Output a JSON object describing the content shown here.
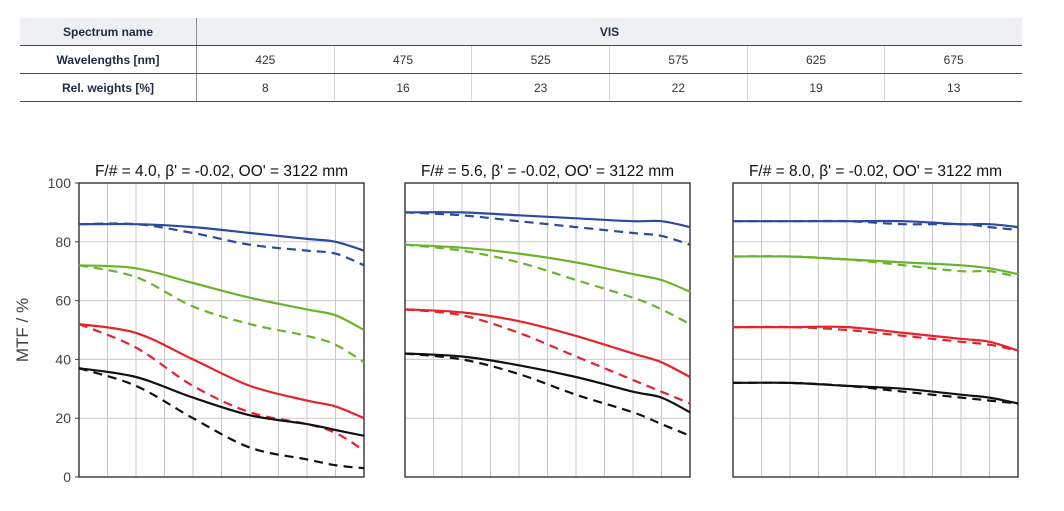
{
  "table": {
    "spectrum_label": "Spectrum name",
    "spectrum_value": "VIS",
    "wavelengths_label": "Wavelengths [nm]",
    "wavelengths": [
      "425",
      "475",
      "525",
      "575",
      "625",
      "675"
    ],
    "weights_label": "Rel. weights [%]",
    "weights": [
      "8",
      "16",
      "23",
      "22",
      "19",
      "13"
    ]
  },
  "chart_data": {
    "type": "line",
    "ylabel": "MTF / %",
    "ylim": [
      0,
      100
    ],
    "yticks": [
      "0",
      "20",
      "40",
      "60",
      "80",
      "100"
    ],
    "xlim": [
      0,
      1
    ],
    "grid": true,
    "colors": {
      "blue": "#2c4a9e",
      "green": "#6ab42d",
      "red": "#e3242b",
      "black": "#111111"
    },
    "panels": [
      {
        "title": "F/# = 4.0, β' = -0.02, OO' = 3122 mm",
        "series": [
          {
            "color": "blue",
            "style": "solid",
            "x": [
              0,
              0.2,
              0.4,
              0.6,
              0.8,
              0.9,
              1.0
            ],
            "y": [
              86,
              86,
              85,
              83,
              81,
              80,
              77
            ]
          },
          {
            "color": "blue",
            "style": "dashed",
            "x": [
              0,
              0.2,
              0.4,
              0.6,
              0.8,
              0.9,
              1.0
            ],
            "y": [
              86,
              86,
              83,
              79,
              77,
              76,
              72
            ]
          },
          {
            "color": "green",
            "style": "solid",
            "x": [
              0,
              0.2,
              0.4,
              0.6,
              0.8,
              0.9,
              1.0
            ],
            "y": [
              72,
              71,
              66,
              61,
              57,
              55,
              50
            ]
          },
          {
            "color": "green",
            "style": "dashed",
            "x": [
              0,
              0.2,
              0.4,
              0.6,
              0.8,
              0.9,
              1.0
            ],
            "y": [
              72,
              68,
              58,
              52,
              48,
              45,
              39
            ]
          },
          {
            "color": "red",
            "style": "solid",
            "x": [
              0,
              0.2,
              0.4,
              0.6,
              0.8,
              0.9,
              1.0
            ],
            "y": [
              52,
              49,
              40,
              31,
              26,
              24,
              20
            ]
          },
          {
            "color": "red",
            "style": "dashed",
            "x": [
              0,
              0.2,
              0.4,
              0.6,
              0.8,
              0.9,
              1.0
            ],
            "y": [
              52,
              44,
              31,
              22,
              18,
              15,
              9
            ]
          },
          {
            "color": "black",
            "style": "solid",
            "x": [
              0,
              0.2,
              0.4,
              0.6,
              0.8,
              0.9,
              1.0
            ],
            "y": [
              37,
              34,
              27,
              21,
              18,
              16,
              14
            ]
          },
          {
            "color": "black",
            "style": "dashed",
            "x": [
              0,
              0.2,
              0.4,
              0.6,
              0.8,
              0.9,
              1.0
            ],
            "y": [
              37,
              31,
              20,
              10,
              6,
              4,
              3
            ]
          }
        ]
      },
      {
        "title": "F/# = 5.6, β' = -0.02, OO' = 3122 mm",
        "series": [
          {
            "color": "blue",
            "style": "solid",
            "x": [
              0,
              0.2,
              0.4,
              0.6,
              0.8,
              0.9,
              1.0
            ],
            "y": [
              90,
              90,
              89,
              88,
              87,
              87,
              85
            ]
          },
          {
            "color": "blue",
            "style": "dashed",
            "x": [
              0,
              0.2,
              0.4,
              0.6,
              0.8,
              0.9,
              1.0
            ],
            "y": [
              90,
              89,
              87,
              85,
              83,
              82,
              79
            ]
          },
          {
            "color": "green",
            "style": "solid",
            "x": [
              0,
              0.2,
              0.4,
              0.6,
              0.8,
              0.9,
              1.0
            ],
            "y": [
              79,
              78,
              76,
              73,
              69,
              67,
              63
            ]
          },
          {
            "color": "green",
            "style": "dashed",
            "x": [
              0,
              0.2,
              0.4,
              0.6,
              0.8,
              0.9,
              1.0
            ],
            "y": [
              79,
              77,
              73,
              67,
              61,
              57,
              52
            ]
          },
          {
            "color": "red",
            "style": "solid",
            "x": [
              0,
              0.2,
              0.4,
              0.6,
              0.8,
              0.9,
              1.0
            ],
            "y": [
              57,
              56,
              53,
              48,
              42,
              39,
              34
            ]
          },
          {
            "color": "red",
            "style": "dashed",
            "x": [
              0,
              0.2,
              0.4,
              0.6,
              0.8,
              0.9,
              1.0
            ],
            "y": [
              57,
              55,
              49,
              41,
              33,
              29,
              25
            ]
          },
          {
            "color": "black",
            "style": "solid",
            "x": [
              0,
              0.2,
              0.4,
              0.6,
              0.8,
              0.9,
              1.0
            ],
            "y": [
              42,
              41,
              38,
              34,
              29,
              27,
              22
            ]
          },
          {
            "color": "black",
            "style": "dashed",
            "x": [
              0,
              0.2,
              0.4,
              0.6,
              0.8,
              0.9,
              1.0
            ],
            "y": [
              42,
              40,
              35,
              28,
              22,
              18,
              14
            ]
          }
        ]
      },
      {
        "title": "F/# = 8.0, β' = -0.02, OO' = 3122 mm",
        "series": [
          {
            "color": "blue",
            "style": "solid",
            "x": [
              0,
              0.2,
              0.4,
              0.6,
              0.8,
              0.9,
              1.0
            ],
            "y": [
              87,
              87,
              87,
              87,
              86,
              86,
              85
            ]
          },
          {
            "color": "blue",
            "style": "dashed",
            "x": [
              0,
              0.2,
              0.4,
              0.6,
              0.8,
              0.9,
              1.0
            ],
            "y": [
              87,
              87,
              87,
              86,
              86,
              85,
              84
            ]
          },
          {
            "color": "green",
            "style": "solid",
            "x": [
              0,
              0.2,
              0.4,
              0.6,
              0.8,
              0.9,
              1.0
            ],
            "y": [
              75,
              75,
              74,
              73,
              72,
              71,
              69
            ]
          },
          {
            "color": "green",
            "style": "dashed",
            "x": [
              0,
              0.2,
              0.4,
              0.6,
              0.8,
              0.9,
              1.0
            ],
            "y": [
              75,
              75,
              74,
              72,
              70,
              70,
              68
            ]
          },
          {
            "color": "red",
            "style": "solid",
            "x": [
              0,
              0.2,
              0.4,
              0.6,
              0.8,
              0.9,
              1.0
            ],
            "y": [
              51,
              51,
              51,
              49,
              47,
              46,
              43
            ]
          },
          {
            "color": "red",
            "style": "dashed",
            "x": [
              0,
              0.2,
              0.4,
              0.6,
              0.8,
              0.9,
              1.0
            ],
            "y": [
              51,
              51,
              50,
              48,
              46,
              45,
              43
            ]
          },
          {
            "color": "black",
            "style": "solid",
            "x": [
              0,
              0.2,
              0.4,
              0.6,
              0.8,
              0.9,
              1.0
            ],
            "y": [
              32,
              32,
              31,
              30,
              28,
              27,
              25
            ]
          },
          {
            "color": "black",
            "style": "dashed",
            "x": [
              0,
              0.2,
              0.4,
              0.6,
              0.8,
              0.9,
              1.0
            ],
            "y": [
              32,
              32,
              31,
              29,
              27,
              26,
              25
            ]
          }
        ]
      }
    ]
  }
}
